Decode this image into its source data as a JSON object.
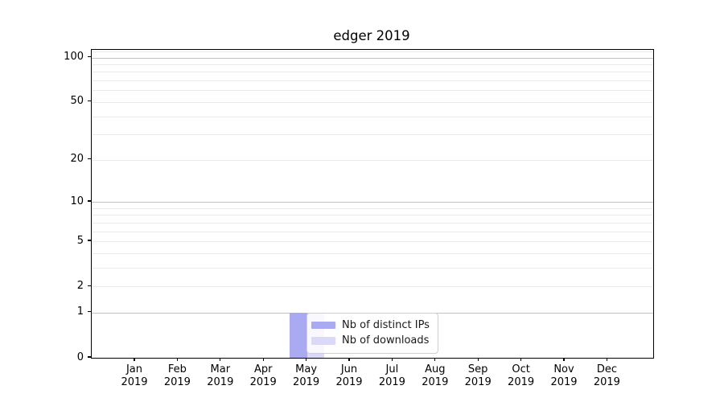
{
  "chart_data": {
    "type": "bar",
    "title": "edger 2019",
    "categories": [
      "Jan",
      "Feb",
      "Mar",
      "Apr",
      "May",
      "Jun",
      "Jul",
      "Aug",
      "Sep",
      "Oct",
      "Nov",
      "Dec"
    ],
    "category_year": "2019",
    "series": [
      {
        "name": "Nb of distinct IPs",
        "color": "#aaaaf3",
        "values": [
          0,
          0,
          0,
          0,
          1,
          0,
          0,
          0,
          0,
          0,
          0,
          0
        ]
      },
      {
        "name": "Nb of downloads",
        "color": "#dadaf8",
        "values": [
          0,
          0,
          0,
          0,
          1,
          0,
          0,
          0,
          0,
          0,
          0,
          0
        ]
      }
    ],
    "xlabel": "",
    "ylabel": "",
    "yscale": "log10(1+y)",
    "yticks": [
      0,
      1,
      2,
      5,
      10,
      20,
      50,
      100
    ],
    "ylim": [
      0,
      113
    ],
    "grid": "horizontal, major decades darker + log minors lighter",
    "legend_position": "inside lower-center, overlapping May bars",
    "colors": {
      "major_grid": "#c2c2c2",
      "minor_grid": "#ebebeb",
      "spine": "#000000",
      "legend_border": "#cfcfcf"
    }
  }
}
